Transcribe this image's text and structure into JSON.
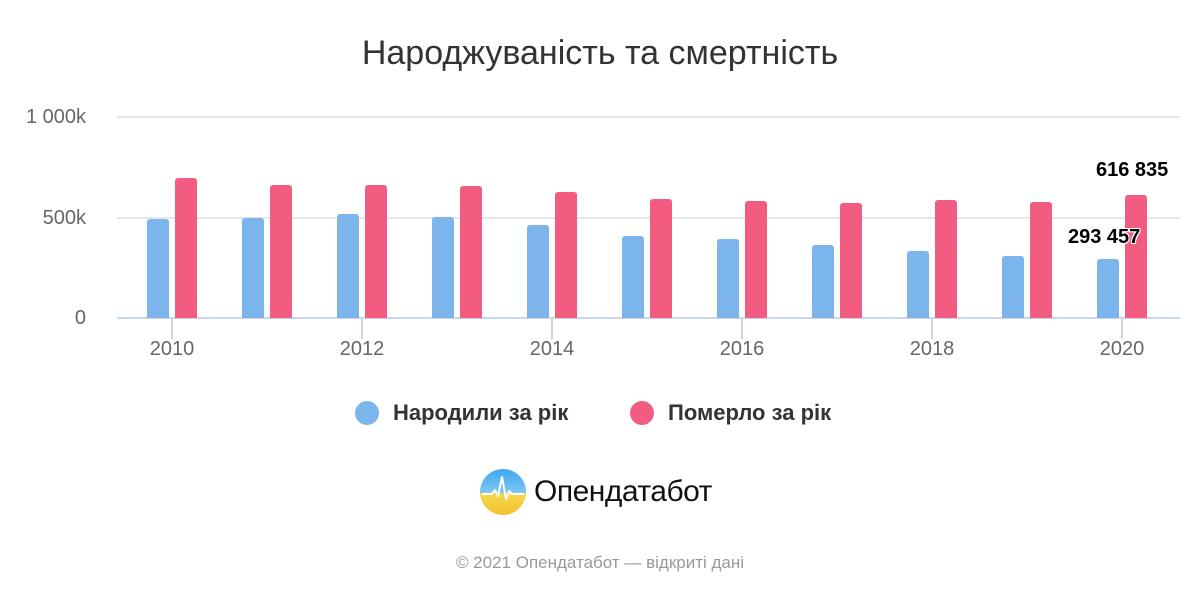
{
  "title": "Народжуваність та смертність",
  "colors": {
    "births": "#7cb5ec",
    "deaths": "#f15c80"
  },
  "legend": [
    {
      "label": "Народили за рік",
      "color": "#7cb5ec"
    },
    {
      "label": "Померло за рік",
      "color": "#f15c80"
    }
  ],
  "y_ticks": [
    "0",
    "500k",
    "1 000k"
  ],
  "x_ticks": [
    "2010",
    "2012",
    "2014",
    "2016",
    "2018",
    "2020"
  ],
  "data_labels": {
    "births_2020": "293 457",
    "deaths_2020": "616 835"
  },
  "logo": {
    "text": "Опендатабот"
  },
  "footer": "© 2021 Опендатабот — відкриті дані",
  "chart_data": {
    "type": "bar",
    "title": "Народжуваність та смертність",
    "xlabel": "",
    "ylabel": "",
    "ylim": [
      0,
      1000000
    ],
    "grid": true,
    "legend_position": "bottom",
    "categories": [
      "2010",
      "2011",
      "2012",
      "2013",
      "2014",
      "2015",
      "2016",
      "2017",
      "2018",
      "2019",
      "2020"
    ],
    "series": [
      {
        "name": "Народили за рік",
        "color": "#7cb5ec",
        "values": [
          497000,
          502000,
          521000,
          503000,
          466000,
          411000,
          397000,
          364000,
          335000,
          308000,
          293457
        ]
      },
      {
        "name": "Померло за рік",
        "color": "#f15c80",
        "values": [
          698000,
          665000,
          663000,
          662000,
          632000,
          594000,
          583000,
          574000,
          588000,
          581000,
          616835
        ]
      }
    ],
    "annotations": [
      {
        "category": "2020",
        "series": "Народили за рік",
        "text": "293 457"
      },
      {
        "category": "2020",
        "series": "Померло за рік",
        "text": "616 835"
      }
    ]
  }
}
